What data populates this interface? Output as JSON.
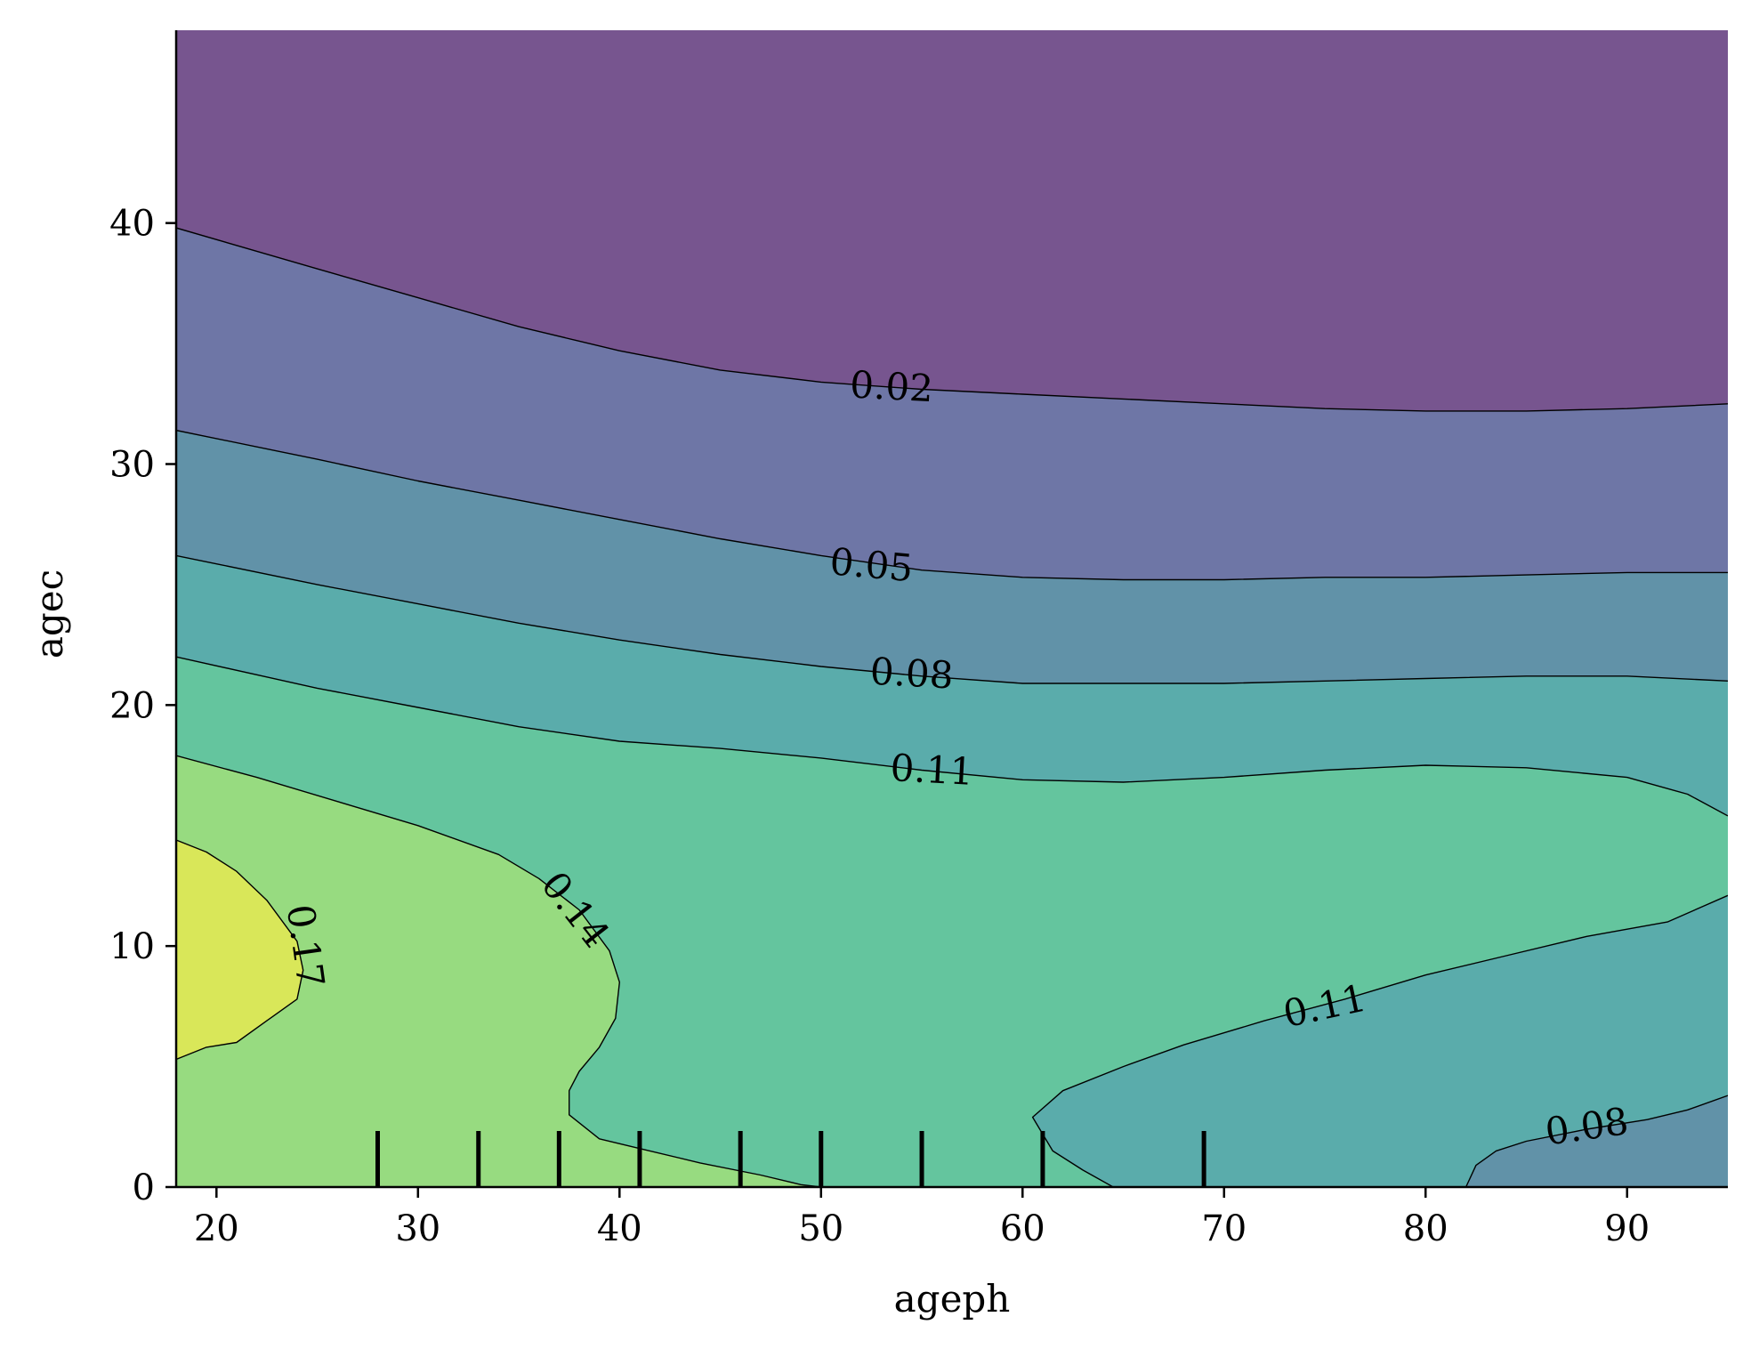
{
  "chart_data": {
    "type": "contour",
    "xlabel": "ageph",
    "ylabel": "agec",
    "xlim": [
      18,
      95
    ],
    "ylim": [
      0,
      48
    ],
    "xticks": [
      20,
      30,
      40,
      50,
      60,
      70,
      80,
      90
    ],
    "yticks": [
      0,
      10,
      20,
      30,
      40
    ],
    "rug_x": [
      28,
      33,
      37,
      41,
      46,
      50,
      55,
      61,
      69
    ],
    "colors": {
      "band_lt_002": "#77558f",
      "band_002_005": "#6e76a6",
      "band_005_008": "#6192a8",
      "band_008_011": "#5aacab",
      "band_011_014": "#64c59e",
      "band_014_017": "#97db80",
      "band_gt_017": "#d9e759",
      "line": "#000000"
    },
    "levels": [
      0.02,
      0.05,
      0.08,
      0.11,
      0.14,
      0.17
    ],
    "contour_lines": [
      {
        "level": 0.02,
        "label": "0.02",
        "points": [
          [
            18,
            39.8
          ],
          [
            25,
            38.1
          ],
          [
            30,
            36.9
          ],
          [
            35,
            35.7
          ],
          [
            40,
            34.7
          ],
          [
            45,
            33.9
          ],
          [
            50,
            33.4
          ],
          [
            55,
            33.1
          ],
          [
            60,
            32.9
          ],
          [
            65,
            32.7
          ],
          [
            70,
            32.5
          ],
          [
            75,
            32.3
          ],
          [
            80,
            32.2
          ],
          [
            85,
            32.2
          ],
          [
            90,
            32.3
          ],
          [
            95,
            32.5
          ]
        ]
      },
      {
        "level": 0.05,
        "label": "0.05",
        "points": [
          [
            18,
            31.4
          ],
          [
            25,
            30.2
          ],
          [
            30,
            29.3
          ],
          [
            35,
            28.5
          ],
          [
            40,
            27.7
          ],
          [
            45,
            26.9
          ],
          [
            50,
            26.2
          ],
          [
            55,
            25.6
          ],
          [
            60,
            25.3
          ],
          [
            65,
            25.2
          ],
          [
            70,
            25.2
          ],
          [
            75,
            25.3
          ],
          [
            80,
            25.3
          ],
          [
            85,
            25.4
          ],
          [
            90,
            25.5
          ],
          [
            95,
            25.5
          ]
        ]
      },
      {
        "level": 0.08,
        "label": "0.08",
        "points": [
          [
            18,
            26.2
          ],
          [
            25,
            25.0
          ],
          [
            30,
            24.2
          ],
          [
            35,
            23.4
          ],
          [
            40,
            22.7
          ],
          [
            45,
            22.1
          ],
          [
            50,
            21.6
          ],
          [
            55,
            21.2
          ],
          [
            60,
            20.9
          ],
          [
            65,
            20.9
          ],
          [
            70,
            20.9
          ],
          [
            75,
            21.0
          ],
          [
            80,
            21.1
          ],
          [
            85,
            21.2
          ],
          [
            90,
            21.2
          ],
          [
            95,
            21.0
          ]
        ]
      },
      {
        "level": 0.11,
        "label": "0.11",
        "points": [
          [
            18,
            22.0
          ],
          [
            25,
            20.7
          ],
          [
            30,
            19.9
          ],
          [
            35,
            19.1
          ],
          [
            40,
            18.5
          ],
          [
            45,
            18.2
          ],
          [
            50,
            17.8
          ],
          [
            55,
            17.3
          ],
          [
            60,
            16.9
          ],
          [
            65,
            16.8
          ],
          [
            70,
            17.0
          ],
          [
            75,
            17.3
          ],
          [
            80,
            17.5
          ],
          [
            85,
            17.4
          ],
          [
            90,
            17.0
          ],
          [
            93,
            16.3
          ],
          [
            95,
            15.4
          ]
        ]
      },
      {
        "level": 0.14,
        "label": "0.14",
        "points": [
          [
            18,
            17.9
          ],
          [
            22,
            17.0
          ],
          [
            26,
            16.0
          ],
          [
            30,
            15.0
          ],
          [
            34,
            13.8
          ],
          [
            36,
            12.8
          ],
          [
            38,
            11.5
          ],
          [
            39.5,
            9.8
          ],
          [
            40,
            8.5
          ],
          [
            39.8,
            7.0
          ],
          [
            39,
            5.8
          ],
          [
            38,
            4.8
          ],
          [
            37.5,
            4.0
          ],
          [
            37.5,
            3.0
          ],
          [
            39,
            2.0
          ],
          [
            41,
            1.6
          ],
          [
            44,
            1.0
          ],
          [
            47,
            0.5
          ],
          [
            49,
            0.1
          ],
          [
            50,
            0.0
          ]
        ]
      },
      {
        "level": 0.17,
        "label": "0.17",
        "points": [
          [
            18,
            14.4
          ],
          [
            19.5,
            13.9
          ],
          [
            21,
            13.1
          ],
          [
            22.5,
            11.9
          ],
          [
            24,
            10.2
          ],
          [
            24.3,
            9.0
          ],
          [
            24,
            7.8
          ],
          [
            22.5,
            6.9
          ],
          [
            21,
            6.0
          ],
          [
            19.5,
            5.8
          ],
          [
            18,
            5.3
          ]
        ]
      },
      {
        "level": 0.11,
        "label": "0.11",
        "points": [
          [
            64.5,
            0.0
          ],
          [
            63,
            0.7
          ],
          [
            61.5,
            1.5
          ],
          [
            60.5,
            2.9
          ],
          [
            62,
            4.0
          ],
          [
            65,
            5.0
          ],
          [
            68,
            5.9
          ],
          [
            72,
            6.9
          ],
          [
            76,
            7.8
          ],
          [
            80,
            8.8
          ],
          [
            84,
            9.6
          ],
          [
            88,
            10.4
          ],
          [
            92,
            11.0
          ],
          [
            95,
            12.1
          ]
        ]
      },
      {
        "level": 0.08,
        "label": "0.08",
        "points": [
          [
            82,
            0.0
          ],
          [
            82.5,
            0.9
          ],
          [
            83.5,
            1.5
          ],
          [
            85,
            1.9
          ],
          [
            88,
            2.4
          ],
          [
            91,
            2.8
          ],
          [
            93,
            3.2
          ],
          [
            95,
            3.8
          ]
        ]
      }
    ],
    "contour_labels": [
      {
        "text": "0.02",
        "x": 53.5,
        "y": 33.2,
        "angle": 3
      },
      {
        "text": "0.05",
        "x": 52.5,
        "y": 25.8,
        "angle": 5
      },
      {
        "text": "0.08",
        "x": 54.5,
        "y": 21.3,
        "angle": 3
      },
      {
        "text": "0.11",
        "x": 55.5,
        "y": 17.3,
        "angle": 3
      },
      {
        "text": "0.14",
        "x": 37.8,
        "y": 11.5,
        "angle": 52
      },
      {
        "text": "0.17",
        "x": 24.4,
        "y": 10.0,
        "angle": 82
      },
      {
        "text": "0.11",
        "x": 75.0,
        "y": 7.5,
        "angle": -12
      },
      {
        "text": "0.08",
        "x": 88.0,
        "y": 2.5,
        "angle": -8
      }
    ]
  }
}
